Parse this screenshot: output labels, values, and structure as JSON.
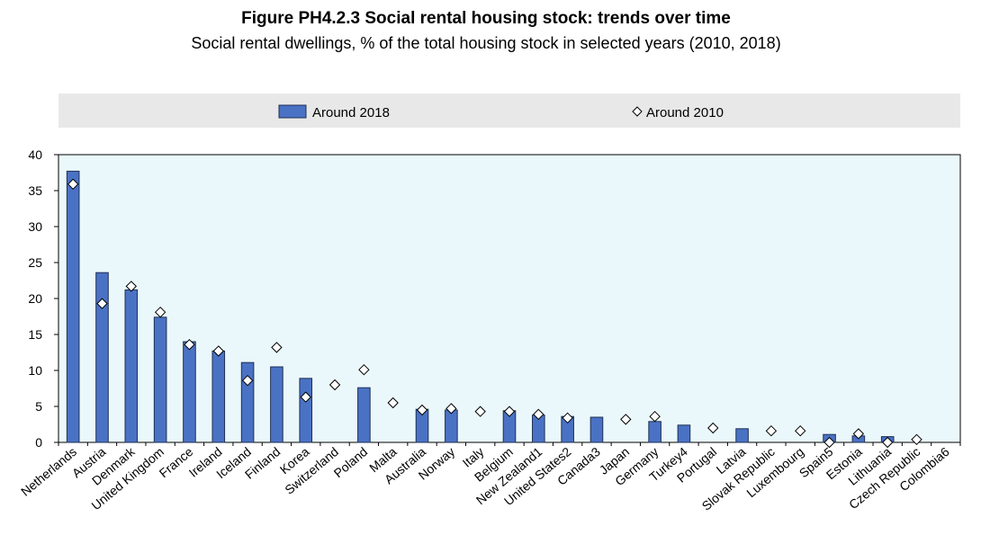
{
  "title": "Figure PH4.2.3 Social rental housing stock: trends over time",
  "subtitle": "Social rental dwellings, % of the total housing stock in selected years (2010, 2018)",
  "colors": {
    "bar_fill": "#4a72c4",
    "bar_stroke": "#1f2f55",
    "plot_bg": "#eaf8fb",
    "legend_bg": "#e8e8e8",
    "marker_fill": "#ffffff",
    "marker_stroke": "#000000"
  },
  "chart_data": {
    "type": "bar",
    "legend_position": "top",
    "grid": false,
    "ylim": [
      0,
      40
    ],
    "yticks": [
      0,
      5,
      10,
      15,
      20,
      25,
      30,
      35,
      40
    ],
    "categories": [
      "Netherlands",
      "Austria",
      "Denmark",
      "United Kingdom",
      "France",
      "Ireland",
      "Iceland",
      "Finland",
      "Korea",
      "Switzerland",
      "Poland",
      "Malta",
      "Australia",
      "Norway",
      "Italy",
      "Belgium",
      "New Zealand1",
      "United States2",
      "Canada3",
      "Japan",
      "Germany",
      "Turkey4",
      "Portugal",
      "Latvia",
      "Slovak Republic",
      "Luxembourg",
      "Spain5",
      "Estonia",
      "Lithuania",
      "Czech Republic",
      "Colombia6"
    ],
    "series": [
      {
        "name": "Around 2018",
        "style": "bar",
        "values": [
          37.7,
          23.6,
          21.2,
          17.4,
          14.0,
          12.7,
          11.1,
          10.5,
          8.9,
          null,
          7.6,
          null,
          4.6,
          4.5,
          null,
          4.4,
          3.8,
          3.6,
          3.5,
          null,
          2.9,
          2.4,
          null,
          1.9,
          null,
          null,
          1.1,
          0.9,
          0.8,
          null,
          null
        ]
      },
      {
        "name": "Around 2010",
        "style": "marker",
        "values": [
          35.9,
          19.3,
          21.7,
          18.1,
          13.6,
          12.7,
          8.6,
          13.2,
          6.3,
          8.0,
          10.1,
          5.5,
          4.5,
          4.7,
          4.3,
          4.3,
          3.9,
          3.4,
          null,
          3.2,
          3.6,
          null,
          2.0,
          null,
          1.6,
          1.6,
          0.0,
          1.2,
          0.0,
          0.4,
          null
        ]
      }
    ]
  }
}
